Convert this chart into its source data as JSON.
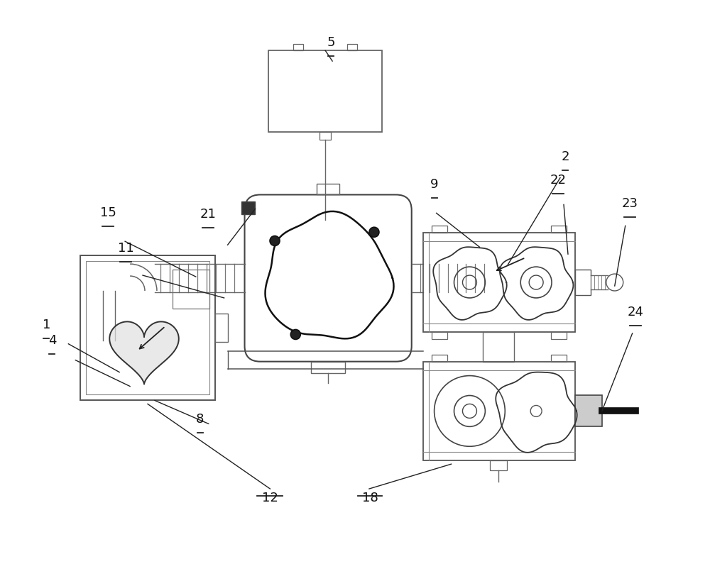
{
  "bg_color": "#ffffff",
  "lc": "#555555",
  "lc_dark": "#333333",
  "lw": 1.2,
  "figsize": [
    10.0,
    8.19
  ],
  "dpi": 100
}
